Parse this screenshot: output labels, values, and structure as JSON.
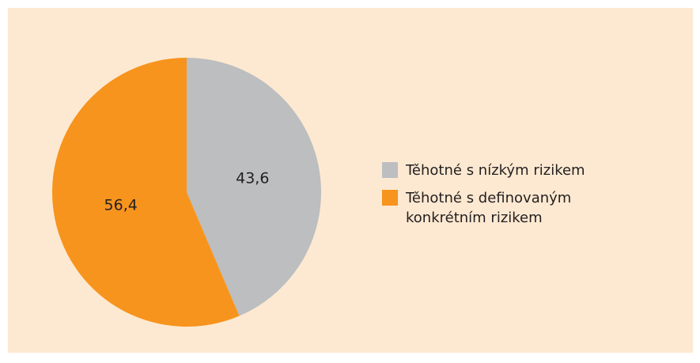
{
  "chart_data": {
    "type": "pie",
    "categories": [
      "Těhotné s nízkým rizikem",
      "Těhotné s definovaným konkrétním rizikem"
    ],
    "values": [
      43.6,
      56.4
    ],
    "value_labels": [
      "43,6",
      "56,4"
    ],
    "colors": [
      "#bcbec0",
      "#f7941d"
    ],
    "legend": "right"
  }
}
